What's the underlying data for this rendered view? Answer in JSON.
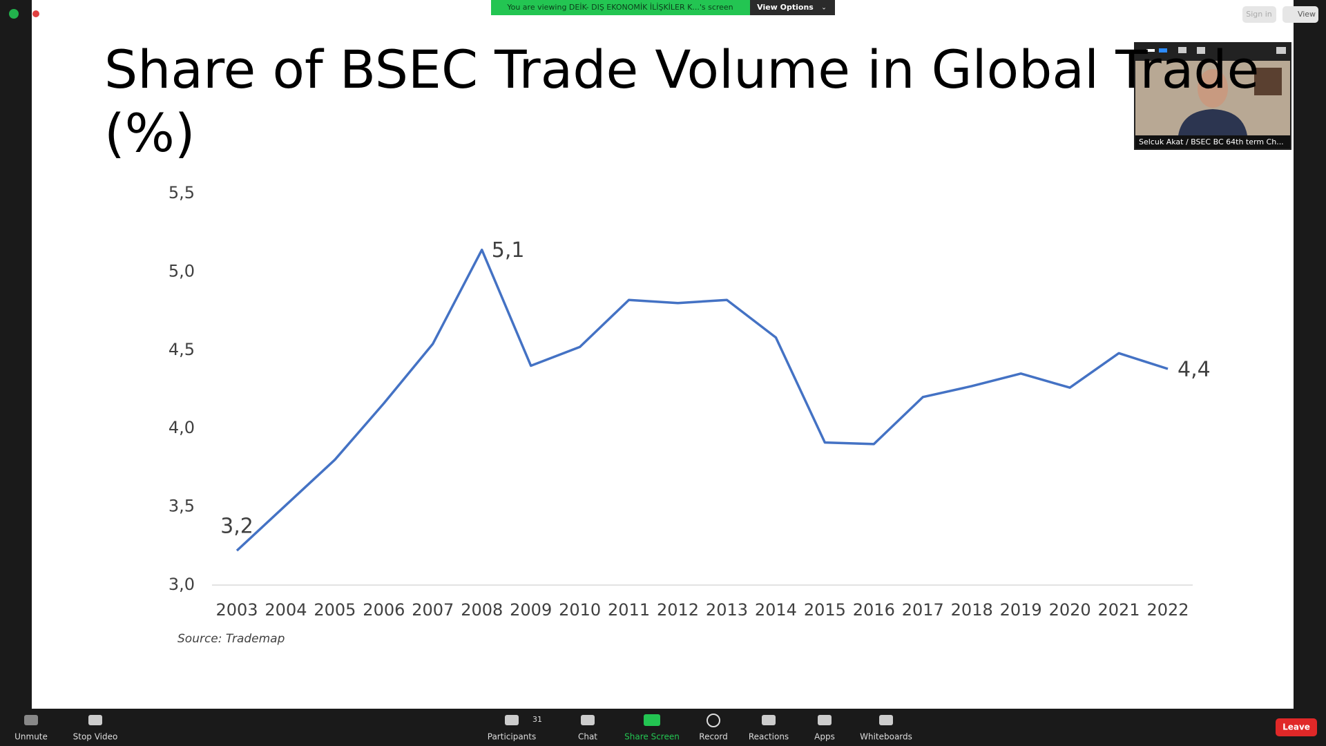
{
  "chart_data": {
    "type": "line",
    "title": "Share of BSEC Trade Volume in Global Trade (%)",
    "annotation": "Source: Trademap",
    "categories": [
      "2003",
      "2004",
      "2005",
      "2006",
      "2007",
      "2008",
      "2009",
      "2010",
      "2011",
      "2012",
      "2013",
      "2014",
      "2015",
      "2016",
      "2017",
      "2018",
      "2019",
      "2020",
      "2021",
      "2022"
    ],
    "series": [
      {
        "name": "Share",
        "color": "#4472c4",
        "values": [
          3.22,
          3.51,
          3.8,
          4.16,
          4.54,
          5.14,
          4.4,
          4.52,
          4.82,
          4.8,
          4.82,
          4.58,
          3.91,
          3.9,
          4.2,
          4.27,
          4.35,
          4.26,
          4.48,
          4.38
        ],
        "value_labels": [
          "3,2",
          null,
          null,
          null,
          null,
          "5,1",
          null,
          null,
          null,
          null,
          null,
          null,
          null,
          null,
          null,
          null,
          null,
          null,
          null,
          "4,4"
        ]
      }
    ],
    "ylim": [
      3,
      5.5
    ],
    "yticks": [
      {
        "value": 3,
        "label": "3,0"
      },
      {
        "value": 3.5,
        "label": "3,5"
      },
      {
        "value": 4,
        "label": "4,0"
      },
      {
        "value": 4.5,
        "label": "4,5"
      },
      {
        "value": 5,
        "label": "5,0"
      },
      {
        "value": 5.5,
        "label": "5,5"
      }
    ],
    "grid": false
  },
  "zoom": {
    "banner": "You are viewing DEİK- DIŞ EKONOMİK İLİŞKİLER K...'s screen",
    "view_options": "View Options",
    "sign_in": "Sign in",
    "view": "View",
    "participant_name": "Selcuk Akat / BSEC BC 64th term Ch...",
    "participant_count": "31",
    "toolbar": [
      "Unmute",
      "Stop Video",
      "Participants",
      "Chat",
      "Share Screen",
      "Record",
      "Reactions",
      "Apps",
      "Whiteboards"
    ],
    "leave": "Leave"
  }
}
